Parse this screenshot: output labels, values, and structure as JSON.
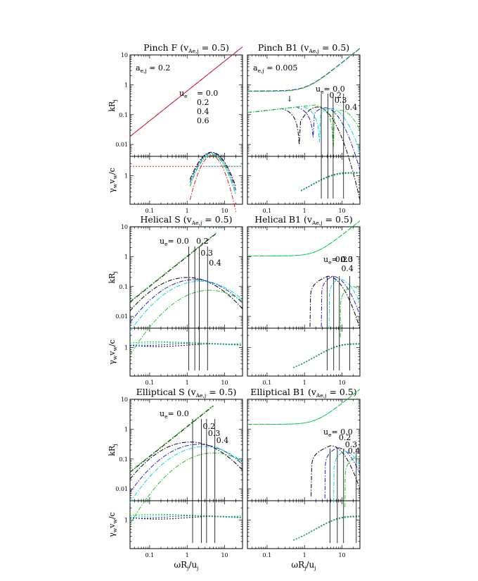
{
  "chart_data": {
    "type": "line",
    "xlabel": "ωR",
    "xlabel_sub": "j",
    "xlabel_tail": "/u",
    "xlabel_sub2": "j",
    "colors": {
      "0.0": "#000000",
      "0.2": "#1f1fd0",
      "0.3": "#00d8e8",
      "0.4": "#20c820",
      "0.6": "#e02020"
    },
    "x_ticks": [
      "0.1",
      "1",
      "10"
    ],
    "panels": [
      {
        "title": "Pinch F (v",
        "title_sub": "Ae,j",
        "title_tail": " = 0.5)",
        "note": "a",
        "note_sub": "e,j",
        "note_tail": " = 0.2",
        "ylabel": "kR",
        "ylabel_sub": "j",
        "ylabel_lower": "γ",
        "ylabel_lower_sub": "w",
        "ylabel_lower_mid": "v",
        "ylabel_lower_sub2": "w",
        "ylabel_lower_tail": "/c",
        "y_ticks": [
          "0.01",
          "0.1",
          "1",
          "10"
        ],
        "y_ticks_lower": [
          "1"
        ],
        "legend_title": "u",
        "legend_sub": "e",
        "legend_values": [
          "= 0.0",
          "0.2",
          "0.4",
          "0.6"
        ],
        "vlines": []
      },
      {
        "title": "Pinch B1 (v",
        "title_sub": "Ae,j",
        "title_tail": " = 0.5)",
        "note": "a",
        "note_sub": "e,j",
        "note_tail": " = 0.005",
        "ue_label": "u",
        "ue_sub": "e",
        "ue_values": [
          "= 0.0",
          "0.2",
          "0.3",
          "0.4"
        ],
        "arrow": "↓",
        "vlines": [
          2.8,
          4.2,
          5.8,
          11.0
        ]
      },
      {
        "title": "Helical S (v",
        "title_sub": "Ae,j",
        "title_tail": " = 0.5)",
        "ylabel": "kR",
        "ylabel_sub": "j",
        "ylabel_lower": "γ",
        "ylabel_lower_sub": "w",
        "ylabel_lower_mid": "v",
        "ylabel_lower_sub2": "w",
        "ylabel_lower_tail": "/c",
        "y_ticks": [
          "0.01",
          "0.1",
          "1",
          "10"
        ],
        "y_ticks_lower": [
          "1"
        ],
        "ue_label": "u",
        "ue_sub": "e",
        "ue_values": [
          "= 0.0",
          "0.2",
          "0.3",
          "0.4"
        ],
        "vlines": [
          1.1,
          1.6,
          2.1,
          3.5
        ]
      },
      {
        "title": "Helical B1 (v",
        "title_sub": "Ae,j",
        "title_tail": " = 0.5)",
        "ue_label": "u",
        "ue_sub": "e",
        "ue_values": [
          "= 0.0",
          "0.2",
          "0.3",
          "0.4"
        ],
        "vlines": [
          4.0,
          6.0,
          8.5,
          16.0
        ]
      },
      {
        "title": "Elliptical S (v",
        "title_sub": "Ae,j",
        "title_tail": " = 0.5)",
        "ylabel": "kR",
        "ylabel_sub": "j",
        "ylabel_lower": "γ",
        "ylabel_lower_sub": "w",
        "ylabel_lower_mid": "v",
        "ylabel_lower_sub2": "w",
        "ylabel_lower_tail": "/c",
        "y_ticks": [
          "0.01",
          "0.1",
          "1",
          "10"
        ],
        "y_ticks_lower": [
          "1"
        ],
        "ue_label": "u",
        "ue_sub": "e",
        "ue_values": [
          "= 0.0",
          "0.2",
          "0.3",
          "0.4"
        ],
        "vlines": [
          1.4,
          2.4,
          3.3,
          5.5
        ]
      },
      {
        "title": "Elliptical B1 (v",
        "title_sub": "Ae,j",
        "title_tail": " = 0.5)",
        "ue_label": "u",
        "ue_sub": "e",
        "ue_values": [
          "= 0.0",
          "0.2",
          "0.3",
          "0.4"
        ],
        "vlines": [
          4.8,
          7.5,
          11.0,
          24.0
        ]
      }
    ]
  }
}
